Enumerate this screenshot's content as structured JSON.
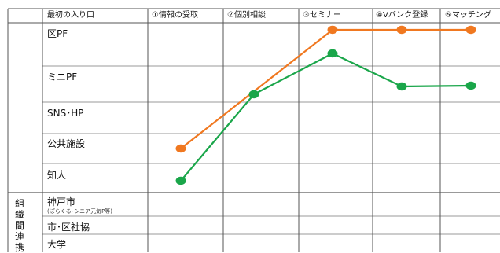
{
  "header": {
    "first_col": "最初の入り口",
    "stages": [
      "①情報の受取",
      "②個別相談",
      "③セミナー",
      "④Vバンク登録",
      "⑤マッチング"
    ]
  },
  "rows": [
    {
      "label": "区PF"
    },
    {
      "label": "ミニPF"
    },
    {
      "label": "SNS･HP"
    },
    {
      "label": "公共施設"
    },
    {
      "label": "知人"
    },
    {
      "label": "神戸市",
      "sub": "(ぽらくる･シニア元気P等)"
    },
    {
      "label": "市･区社協"
    },
    {
      "label": "大学"
    }
  ],
  "side_label": "組織間連携",
  "chart_data": {
    "type": "line",
    "x": [
      "①情報の受取",
      "②個別相談",
      "③セミナー",
      "④Vバンク登録",
      "⑤マッチング"
    ],
    "series": [
      {
        "color": "#f07820",
        "values": [
          [
            1,
            "公共施設"
          ],
          [
            3,
            "区PF"
          ],
          [
            4,
            "区PF"
          ],
          [
            5,
            "区PF"
          ]
        ]
      },
      {
        "color": "#1aa64a",
        "values": [
          [
            1,
            "知人"
          ],
          [
            2,
            "ミニPF/SNS･HP"
          ],
          [
            3,
            "ミニPF"
          ],
          [
            4,
            "ミニPF"
          ],
          [
            5,
            "ミニPF"
          ]
        ]
      }
    ]
  }
}
